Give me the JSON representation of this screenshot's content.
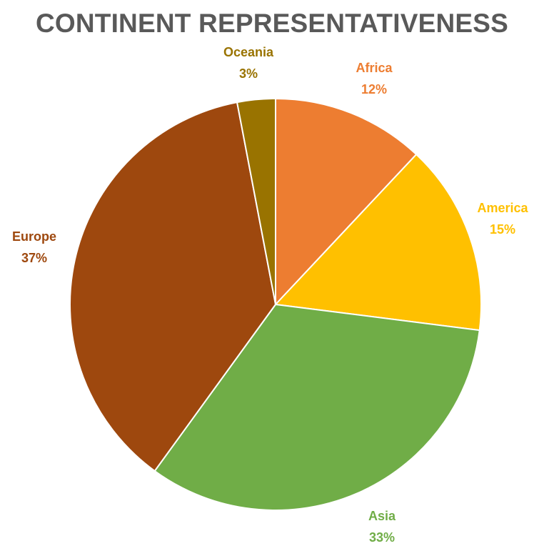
{
  "chart_data": {
    "type": "pie",
    "title": "CONTINENT REPRESENTATIVENESS",
    "slices": [
      {
        "label": "Africa",
        "value": 12,
        "display": "12%",
        "color": "#ED7D31"
      },
      {
        "label": "America",
        "value": 15,
        "display": "15%",
        "color": "#FFC000"
      },
      {
        "label": "Asia",
        "value": 33,
        "display": "33%",
        "color": "#70AD47"
      },
      {
        "label": "Europe",
        "value": 37,
        "display": "37%",
        "color": "#9E480E"
      },
      {
        "label": "Oceania",
        "value": 3,
        "display": "3%",
        "color": "#997300"
      }
    ],
    "start_angle": "12 o'clock",
    "direction": "clockwise",
    "legend": "none",
    "data_labels": "outside"
  }
}
